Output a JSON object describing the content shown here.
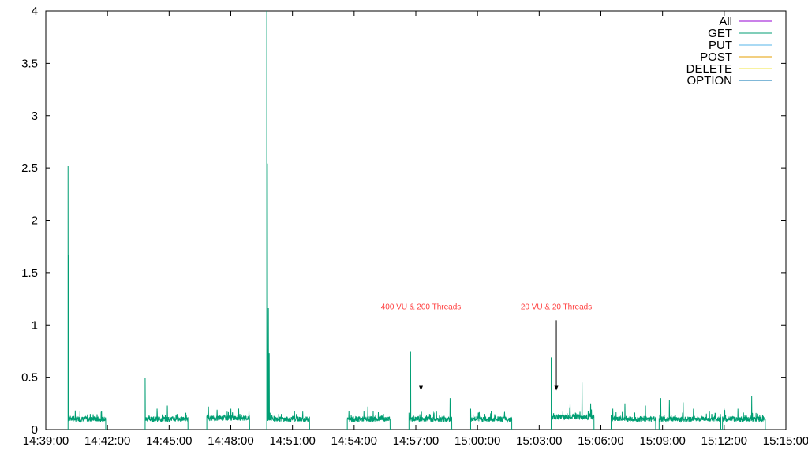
{
  "chart_data": {
    "type": "line",
    "title": "",
    "xlabel": "",
    "ylabel": "",
    "x_ticks": [
      "14:39:00",
      "14:42:00",
      "14:45:00",
      "14:48:00",
      "14:51:00",
      "14:54:00",
      "14:57:00",
      "15:00:00",
      "15:03:00",
      "15:06:00",
      "15:09:00",
      "15:12:00",
      "15:15:00"
    ],
    "y_ticks": [
      "0",
      "0.5",
      "1",
      "1.5",
      "2",
      "2.5",
      "3",
      "3.5",
      "4"
    ],
    "xlim_seconds_from_1439": [
      0,
      2160
    ],
    "ylim": [
      0,
      4
    ],
    "grid": false,
    "legend_position": "top-right",
    "series": [
      {
        "name": "All",
        "color": "#9400d3",
        "values": []
      },
      {
        "name": "GET",
        "color": "#009e73",
        "values": []
      },
      {
        "name": "PUT",
        "color": "#56b4e9",
        "values": []
      },
      {
        "name": "POST",
        "color": "#e69f00",
        "values": []
      },
      {
        "name": "DELETE",
        "color": "#f0e442",
        "values": []
      },
      {
        "name": "OPTION",
        "color": "#0072b2",
        "values": []
      }
    ],
    "traffic_segments": [
      {
        "start": "14:40:05",
        "end": "14:41:55",
        "base": 0.1,
        "spikes": [
          [
            "14:40:05",
            2.52
          ],
          [
            "14:40:07",
            1.67
          ],
          [
            "14:40:40",
            0.18
          ],
          [
            "14:41:10",
            0.15
          ]
        ]
      },
      {
        "start": "14:43:50",
        "end": "14:45:55",
        "base": 0.1,
        "spikes": [
          [
            "14:43:50",
            0.49
          ],
          [
            "14:44:25",
            0.2
          ],
          [
            "14:44:55",
            0.23
          ]
        ]
      },
      {
        "start": "14:46:50",
        "end": "14:48:55",
        "base": 0.11,
        "spikes": [
          [
            "14:46:55",
            0.22
          ],
          [
            "14:47:20",
            0.19
          ],
          [
            "14:48:00",
            0.2
          ]
        ]
      },
      {
        "start": "14:49:45",
        "end": "14:51:50",
        "base": 0.1,
        "spikes": [
          [
            "14:49:45",
            4.0
          ],
          [
            "14:49:47",
            2.54
          ],
          [
            "14:49:50",
            1.16
          ],
          [
            "14:49:52",
            0.73
          ],
          [
            "14:50:20",
            0.15
          ],
          [
            "14:51:00",
            0.13
          ]
        ]
      },
      {
        "start": "14:53:40",
        "end": "14:55:45",
        "base": 0.1,
        "spikes": [
          [
            "14:53:45",
            0.18
          ],
          [
            "14:54:40",
            0.22
          ]
        ]
      },
      {
        "start": "14:56:40",
        "end": "14:58:45",
        "base": 0.1,
        "spikes": [
          [
            "14:56:45",
            0.75
          ],
          [
            "14:57:40",
            0.15
          ],
          [
            "14:58:40",
            0.3
          ]
        ]
      },
      {
        "start": "14:59:40",
        "end": "15:01:40",
        "base": 0.1,
        "spikes": [
          [
            "14:59:40",
            0.2
          ],
          [
            "15:00:40",
            0.18
          ]
        ]
      },
      {
        "start": "15:03:35",
        "end": "15:05:40",
        "base": 0.12,
        "spikes": [
          [
            "15:03:35",
            0.69
          ],
          [
            "15:03:37",
            0.35
          ],
          [
            "15:04:30",
            0.25
          ],
          [
            "15:05:05",
            0.45
          ],
          [
            "15:05:30",
            0.25
          ]
        ]
      },
      {
        "start": "15:06:30",
        "end": "15:08:40",
        "base": 0.1,
        "spikes": [
          [
            "15:06:35",
            0.2
          ],
          [
            "15:07:10",
            0.25
          ],
          [
            "15:08:10",
            0.23
          ]
        ]
      },
      {
        "start": "15:08:50",
        "end": "15:11:50",
        "base": 0.1,
        "spikes": [
          [
            "15:08:55",
            0.3
          ],
          [
            "15:09:20",
            0.28
          ],
          [
            "15:10:00",
            0.26
          ],
          [
            "15:10:30",
            0.2
          ]
        ]
      },
      {
        "start": "15:11:55",
        "end": "15:14:00",
        "base": 0.1,
        "spikes": [
          [
            "15:12:00",
            0.2
          ],
          [
            "15:12:40",
            0.2
          ],
          [
            "15:13:20",
            0.32
          ]
        ]
      }
    ],
    "annotations": [
      {
        "text": "400 VU & 200 Threads",
        "x": "14:57:15",
        "y_text": 1.15,
        "y_arrow": 0.38
      },
      {
        "text": "20 VU & 20 Threads",
        "x": "15:03:50",
        "y_text": 1.15,
        "y_arrow": 0.38
      }
    ]
  }
}
